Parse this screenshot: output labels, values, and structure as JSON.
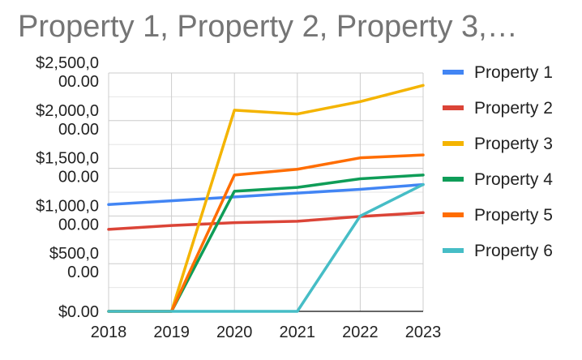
{
  "chart_data": {
    "type": "line",
    "title": "Property 1, Property 2, Property 3,…",
    "xlabel": "",
    "ylabel": "",
    "x": [
      "2018",
      "2019",
      "2020",
      "2021",
      "2022",
      "2023"
    ],
    "ylim": [
      0,
      2500
    ],
    "y_ticks": [
      {
        "value": 2500,
        "lines": [
          "$2,500,0",
          "00.00"
        ]
      },
      {
        "value": 2000,
        "lines": [
          "$2,000,0",
          "00.00"
        ]
      },
      {
        "value": 1500,
        "lines": [
          "$1,500,0",
          "00.00"
        ]
      },
      {
        "value": 1000,
        "lines": [
          "$1,000,0",
          "00.00"
        ]
      },
      {
        "value": 500,
        "lines": [
          "$500,0",
          "0.00"
        ]
      },
      {
        "value": 0,
        "lines": [
          "$0.00"
        ]
      }
    ],
    "grid": true,
    "legend_position": "right",
    "series": [
      {
        "name": "Property 1",
        "color": "#4285f4",
        "values": [
          1120,
          1160,
          1200,
          1240,
          1280,
          1330
        ]
      },
      {
        "name": "Property 2",
        "color": "#db4437",
        "values": [
          860,
          900,
          930,
          945,
          995,
          1035
        ]
      },
      {
        "name": "Property 3",
        "color": "#f4b400",
        "values": [
          0,
          0,
          2110,
          2070,
          2200,
          2370
        ]
      },
      {
        "name": "Property 4",
        "color": "#0f9d58",
        "values": [
          0,
          0,
          1260,
          1300,
          1390,
          1430
        ]
      },
      {
        "name": "Property 5",
        "color": "#ff6d01",
        "values": [
          0,
          0,
          1430,
          1490,
          1610,
          1640
        ]
      },
      {
        "name": "Property 6",
        "color": "#46bdc6",
        "values": [
          0,
          0,
          0,
          0,
          1000,
          1330
        ]
      }
    ]
  }
}
